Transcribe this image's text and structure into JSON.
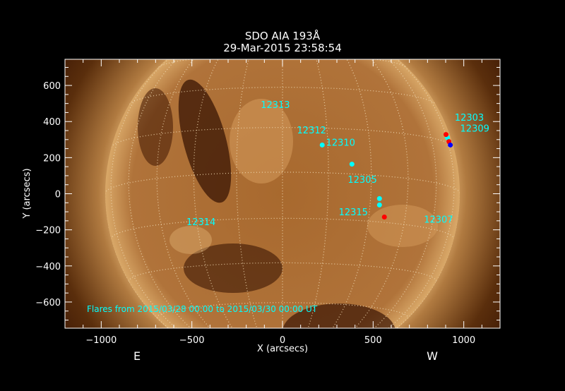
{
  "chart_data": {
    "type": "scatter",
    "title": "SDO AIA 193Å",
    "subtitle": "29-Mar-2015 23:58:54",
    "xlabel": "X (arcsecs)",
    "ylabel": "Y (arcsecs)",
    "xlim": [
      -1200,
      1200
    ],
    "ylim": [
      -745,
      745
    ],
    "xticks": [
      -1000,
      -500,
      0,
      500,
      1000
    ],
    "yticks": [
      -600,
      -400,
      -200,
      0,
      200,
      400,
      600
    ],
    "grid": "heliographic 15°",
    "solar_radius_arcsec": 980,
    "east_label": "E",
    "west_label": "W",
    "annotation": "Flares from 2015/03/28 00:00 to 2015/03/30 00:00 UT",
    "colors": {
      "label": "#00ffff",
      "disk": "#a8692e",
      "axes": "#ffffff"
    },
    "regions": [
      {
        "name": "12313",
        "x": -120,
        "y": 475
      },
      {
        "name": "12312",
        "x": 80,
        "y": 335
      },
      {
        "name": "12310",
        "x": 240,
        "y": 265
      },
      {
        "name": "12305",
        "x": 360,
        "y": 60
      },
      {
        "name": "12315",
        "x": 310,
        "y": -120
      },
      {
        "name": "12307",
        "x": 780,
        "y": -160
      },
      {
        "name": "12303",
        "x": 950,
        "y": 405
      },
      {
        "name": "12309",
        "x": 980,
        "y": 345
      },
      {
        "name": "12314",
        "x": -530,
        "y": -175
      }
    ],
    "flares": [
      {
        "x": 219,
        "y": 270,
        "color": "#00ffff"
      },
      {
        "x": 383,
        "y": 164,
        "color": "#00ffff"
      },
      {
        "x": 535,
        "y": -27,
        "color": "#00ffff"
      },
      {
        "x": 535,
        "y": -62,
        "color": "#00ffff"
      },
      {
        "x": 562,
        "y": -129,
        "color": "#ff0000"
      },
      {
        "x": 910,
        "y": 310,
        "color": "#00ffff"
      },
      {
        "x": 902,
        "y": 328,
        "color": "#ff0000"
      },
      {
        "x": 918,
        "y": 289,
        "color": "#ff0000"
      },
      {
        "x": 926,
        "y": 270,
        "color": "#0000ff"
      }
    ]
  }
}
